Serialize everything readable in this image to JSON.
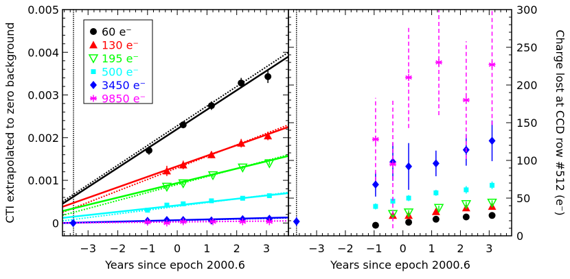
{
  "chart_data": [
    {
      "type": "scatter",
      "panel": "left",
      "xlabel": "Years since epoch 2000.6",
      "ylabel": "CTI extrapolated to zero background",
      "xlim": [
        -3.86,
        3.74
      ],
      "ylim": [
        -0.0003,
        0.005
      ],
      "xticks": [
        -3,
        -2,
        -1,
        0,
        1,
        2,
        3
      ],
      "yticks": [
        0,
        0.001,
        0.002,
        0.003,
        0.004,
        0.005
      ],
      "ytick_labels": [
        "0",
        "0.001",
        "0.002",
        "0.003",
        "0.004",
        "0.005"
      ],
      "vline_x": -3.49,
      "legend": {
        "placement": "top-left"
      },
      "series": [
        {
          "name": "60 e⁻",
          "color": "#000000",
          "marker": "filled-circle",
          "x": [
            -0.95,
            0.2,
            1.15,
            2.15,
            3.05
          ],
          "y": [
            0.0017,
            0.0023,
            0.00275,
            0.00328,
            0.00343
          ],
          "err": [
            0.0001,
            8e-05,
            0.0001,
            0.00012,
            0.00015
          ],
          "fit_solid": [
            0.00045,
            0.0039
          ],
          "fit_dotted": [
            0.0005,
            0.004
          ]
        },
        {
          "name": "130 e⁻",
          "color": "#ff0000",
          "marker": "filled-triangle",
          "x": [
            -0.35,
            0.2,
            1.15,
            2.15,
            3.05
          ],
          "y": [
            0.00122,
            0.00136,
            0.0016,
            0.00187,
            0.00204
          ],
          "err": [
            0.00012,
            0.0001,
            8e-05,
            0.0001,
            0.0001
          ],
          "fit_solid": [
            0.00038,
            0.00225
          ],
          "fit_dotted": [
            0.00025,
            0.0023
          ]
        },
        {
          "name": "195 e⁻",
          "color": "#00ff00",
          "marker": "open-down-triangle",
          "x": [
            -0.35,
            0.2,
            1.2,
            2.2,
            3.1
          ],
          "y": [
            0.00085,
            0.00093,
            0.00112,
            0.0013,
            0.0014
          ],
          "err": [
            4e-05,
            4e-05,
            4e-05,
            4e-05,
            4e-05
          ],
          "fit_solid": [
            0.00028,
            0.00157
          ],
          "fit_dotted": [
            0.00018,
            0.0016
          ]
        },
        {
          "name": "500 e⁻",
          "color": "#00ffff",
          "marker": "filled-square",
          "x": [
            -1.0,
            -0.35,
            0.2,
            1.15,
            2.2,
            3.1
          ],
          "y": [
            0.0003,
            0.00042,
            0.00045,
            0.00052,
            0.00058,
            0.00064
          ],
          "err": [
            3e-05,
            3e-05,
            3e-05,
            3e-05,
            3e-05,
            3e-05
          ],
          "fit_solid": [
            0.00012,
            0.0007
          ],
          "fit_dotted": [
            5e-05,
            0.00072
          ]
        },
        {
          "name": "3450 e⁻",
          "color": "#0000ff",
          "marker": "filled-diamond",
          "x": [
            -3.5,
            -1.0,
            -0.35,
            0.2,
            1.15,
            2.2,
            3.1
          ],
          "y": [
            0.0,
            5e-05,
            7e-05,
            7e-05,
            6e-05,
            9e-05,
            0.0001
          ],
          "err": [
            2e-05,
            2e-05,
            2e-05,
            2e-05,
            2e-05,
            2e-05,
            2e-05
          ],
          "fit_solid": [
            0.0,
            0.00013
          ],
          "fit_dotted": [
            0.0,
            0.00012
          ]
        },
        {
          "name": "9850 e⁻",
          "color": "#ff00ff",
          "marker": "star",
          "x": [
            -1.0,
            -0.35,
            0.2,
            1.2,
            2.2,
            3.1
          ],
          "y": [
            2e-05,
            0.0,
            3e-05,
            3e-05,
            3e-05,
            3e-05
          ],
          "err": [
            2e-05,
            2e-05,
            2e-05,
            2e-05,
            2e-05,
            2e-05
          ],
          "fit_solid": null,
          "fit_dotted": [
            0.0,
            5e-05
          ]
        }
      ]
    },
    {
      "type": "scatter",
      "panel": "right",
      "xlabel": "Years since epoch 2000.6",
      "ylabel": "Charge lost at CCD row #512 (e⁻)",
      "xlim": [
        -3.98,
        3.78
      ],
      "ylim": [
        0,
        300
      ],
      "xticks": [
        -3,
        -2,
        -1,
        0,
        1,
        2,
        3
      ],
      "yticks": [
        0,
        50,
        100,
        150,
        200,
        250,
        300
      ],
      "vline_x": -3.7,
      "series": [
        {
          "name": "60 e⁻",
          "color": "#000000",
          "marker": "filled-circle",
          "x": [
            -0.95,
            0.2,
            1.15,
            2.2,
            3.1
          ],
          "y": [
            14,
            18,
            22,
            25,
            27
          ],
          "err": [
            0,
            0,
            0,
            0,
            0
          ]
        },
        {
          "name": "130 e⁻",
          "color": "#ff0000",
          "marker": "filled-triangle",
          "x": [
            -0.35,
            0.2,
            1.15,
            2.2,
            3.1
          ],
          "y": [
            27,
            27,
            32,
            37,
            39
          ],
          "err": [
            0,
            0,
            0,
            0,
            0
          ]
        },
        {
          "name": "195 e⁻",
          "color": "#00ff00",
          "marker": "open-down-triangle",
          "x": [
            -0.35,
            0.2,
            1.25,
            2.2,
            3.1
          ],
          "y": [
            29,
            31,
            37,
            42,
            44
          ],
          "err": [
            3,
            3,
            3,
            3,
            3
          ]
        },
        {
          "name": "500 e⁻",
          "color": "#00ffff",
          "marker": "filled-square",
          "x": [
            -0.95,
            -0.35,
            0.2,
            1.15,
            2.2,
            3.1
          ],
          "y": [
            39,
            46,
            50,
            57,
            61,
            67
          ],
          "err": [
            4,
            4,
            4,
            4,
            5,
            5
          ]
        },
        {
          "name": "3450 e⁻",
          "color": "#0000ff",
          "marker": "filled-diamond",
          "x": [
            -3.7,
            -0.95,
            -0.35,
            0.2,
            1.15,
            2.2,
            3.1
          ],
          "y": [
            19,
            68,
            98,
            92,
            96,
            114,
            126
          ],
          "err": [
            6,
            16,
            25,
            31,
            17,
            21,
            27
          ]
        },
        {
          "name": "9850 e⁻",
          "color": "#ff00ff",
          "marker": "star",
          "dashed_err": true,
          "x": [
            -0.95,
            -0.35,
            0.2,
            1.25,
            2.2,
            3.1
          ],
          "y": [
            128,
            95,
            210,
            230,
            180,
            227
          ],
          "err": [
            55,
            85,
            67,
            70,
            78,
            80
          ]
        }
      ]
    }
  ]
}
